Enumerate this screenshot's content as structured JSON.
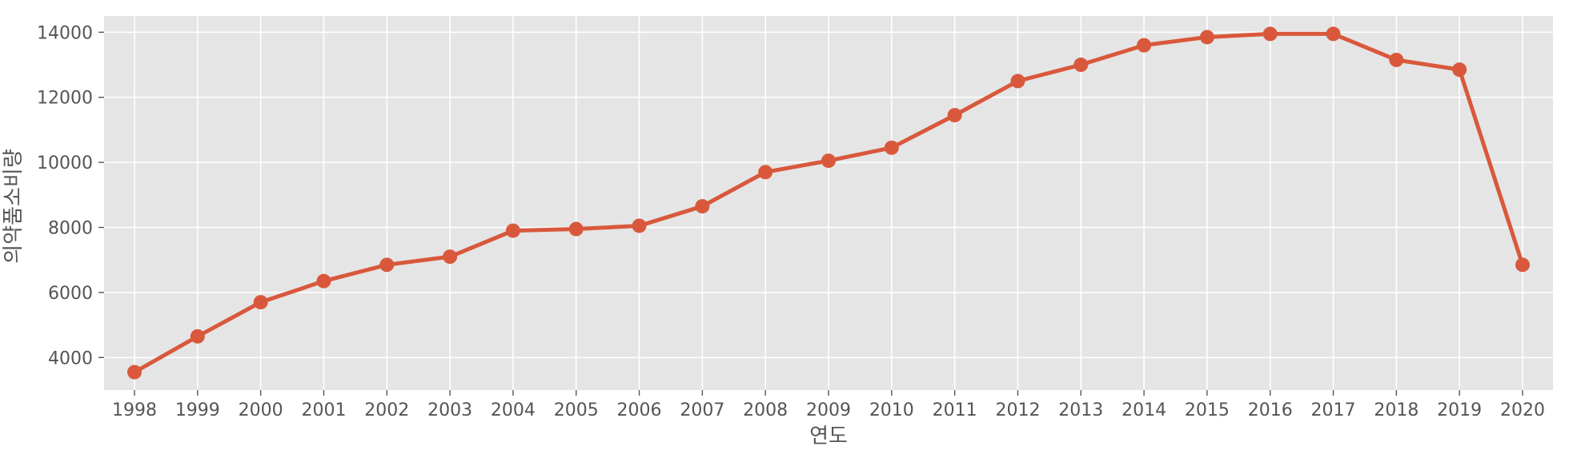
{
  "chart_data": {
    "type": "line",
    "title": "",
    "xlabel": "연도",
    "ylabel": "의약품소비량",
    "x": [
      "1998",
      "1999",
      "2000",
      "2001",
      "2002",
      "2003",
      "2004",
      "2005",
      "2006",
      "2007",
      "2008",
      "2009",
      "2010",
      "2011",
      "2012",
      "2013",
      "2014",
      "2015",
      "2016",
      "2017",
      "2018",
      "2019",
      "2020"
    ],
    "series": [
      {
        "values": [
          3550,
          4650,
          5700,
          6350,
          6850,
          7100,
          7900,
          7950,
          8050,
          8650,
          9700,
          10050,
          10450,
          11450,
          12500,
          13000,
          13600,
          13850,
          13950,
          13950,
          13150,
          12850,
          6850
        ]
      }
    ],
    "ylim": [
      3000,
      14500
    ],
    "yticks": [
      4000,
      6000,
      8000,
      10000,
      12000,
      14000
    ],
    "grid": true,
    "legend": "none",
    "colors": {
      "plot_background": "#e5e5e5",
      "grid": "#ffffff",
      "line": "#d9583c",
      "text": "#555555"
    }
  }
}
